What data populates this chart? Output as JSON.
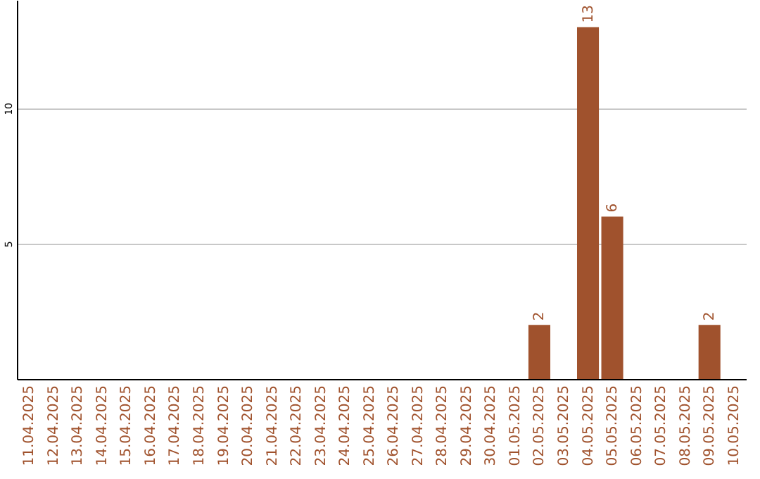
{
  "chart_data": {
    "type": "bar",
    "categories": [
      "11.04.2025",
      "12.04.2025",
      "13.04.2025",
      "14.04.2025",
      "15.04.2025",
      "16.04.2025",
      "17.04.2025",
      "18.04.2025",
      "19.04.2025",
      "20.04.2025",
      "21.04.2025",
      "22.04.2025",
      "23.04.2025",
      "24.04.2025",
      "25.04.2025",
      "26.04.2025",
      "27.04.2025",
      "28.04.2025",
      "29.04.2025",
      "30.04.2025",
      "01.05.2025",
      "02.05.2025",
      "03.05.2025",
      "04.05.2025",
      "05.05.2025",
      "06.05.2025",
      "07.05.2025",
      "08.05.2025",
      "09.05.2025",
      "10.05.2025"
    ],
    "values": [
      null,
      null,
      null,
      null,
      null,
      null,
      null,
      null,
      null,
      null,
      null,
      null,
      null,
      null,
      null,
      null,
      null,
      null,
      null,
      null,
      null,
      2,
      null,
      13,
      6,
      null,
      null,
      null,
      2,
      null
    ],
    "color": "#a0522d",
    "ylim": [
      0,
      14
    ],
    "yticks": [
      5,
      10
    ],
    "grid": "y",
    "data_labels": true
  }
}
